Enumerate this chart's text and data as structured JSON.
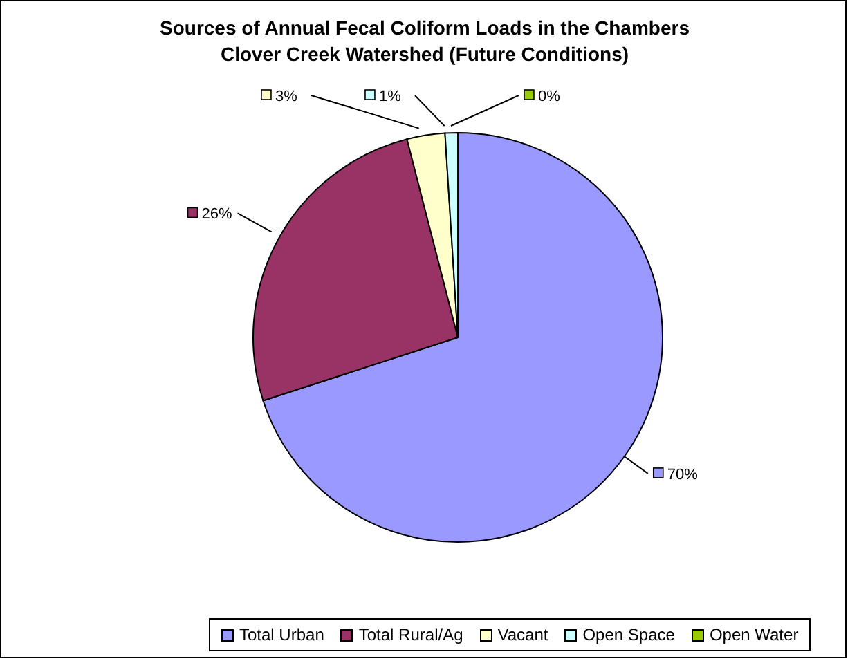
{
  "chart_data": {
    "type": "pie",
    "title": "Sources of Annual Fecal Coliform Loads in the Chambers Clover Creek Watershed (Future Conditions)",
    "categories": [
      "Total Urban",
      "Total Rural/Ag",
      "Vacant",
      "Open Space",
      "Open Water"
    ],
    "values": [
      70,
      26,
      3,
      1,
      0
    ],
    "colors": [
      "#9999ff",
      "#993366",
      "#ffffcc",
      "#ccffff",
      "#99cc00"
    ],
    "value_labels": [
      "70%",
      "26%",
      "3%",
      "1%",
      "0%"
    ],
    "legend": "bottom"
  }
}
